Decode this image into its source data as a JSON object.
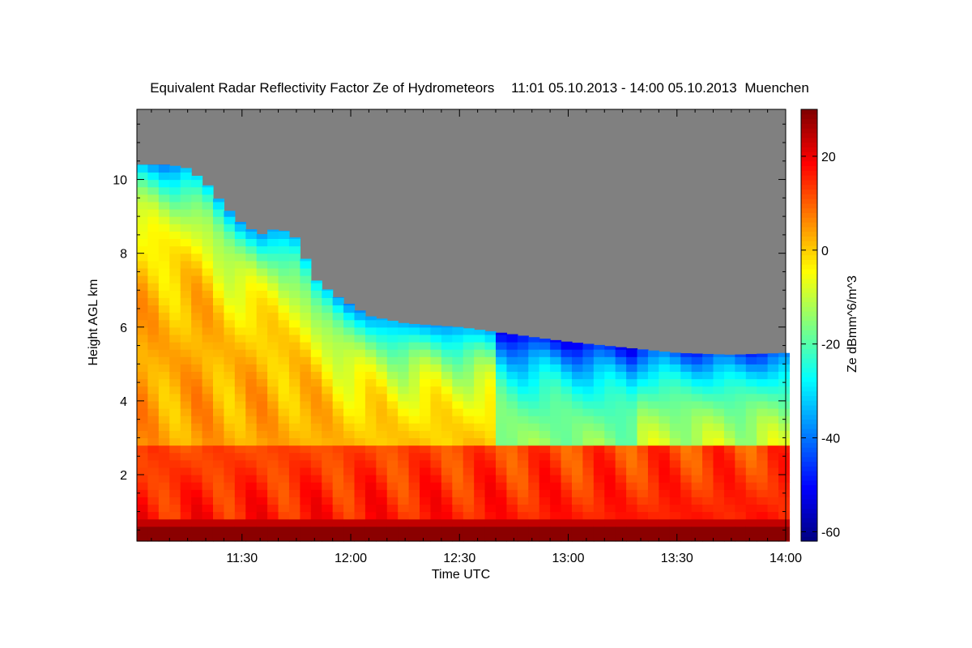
{
  "chart_data": {
    "type": "heatmap",
    "title": "Equivalent Radar Reflectivity Factor Ze of Hydrometeors",
    "time_range_text": "11:01 05.10.2013 - 14:00 05.10.2013",
    "location": "Muenchen",
    "xlabel": "Time UTC",
    "ylabel": "Height AGL km",
    "colorbar_label": "Ze dBmm^6/m^3",
    "x_ticks": [
      "11:30",
      "12:00",
      "12:30",
      "13:00",
      "13:30",
      "14:00"
    ],
    "xlim": [
      "11:01",
      "14:00"
    ],
    "y_ticks": [
      2,
      4,
      6,
      8,
      10
    ],
    "ylim": [
      0.2,
      11.9
    ],
    "colorbar_ticks": [
      20,
      0,
      -20,
      -40,
      -60
    ],
    "colorbar_range": [
      -62,
      30
    ],
    "colormap": "jet",
    "no_data_color": "#808080",
    "cloud_top_km": [
      {
        "t": "11:01",
        "h": 10.4
      },
      {
        "t": "11:10",
        "h": 10.4
      },
      {
        "t": "11:15",
        "h": 10.3
      },
      {
        "t": "11:20",
        "h": 9.9
      },
      {
        "t": "11:25",
        "h": 9.3
      },
      {
        "t": "11:30",
        "h": 8.8
      },
      {
        "t": "11:35",
        "h": 8.5
      },
      {
        "t": "11:40",
        "h": 8.7
      },
      {
        "t": "11:45",
        "h": 8.4
      },
      {
        "t": "11:50",
        "h": 7.3
      },
      {
        "t": "11:55",
        "h": 6.9
      },
      {
        "t": "12:00",
        "h": 6.6
      },
      {
        "t": "12:05",
        "h": 6.3
      },
      {
        "t": "12:15",
        "h": 6.1
      },
      {
        "t": "12:30",
        "h": 6.0
      },
      {
        "t": "12:45",
        "h": 5.8
      },
      {
        "t": "13:00",
        "h": 5.6
      },
      {
        "t": "13:15",
        "h": 5.45
      },
      {
        "t": "13:30",
        "h": 5.3
      },
      {
        "t": "13:45",
        "h": 5.25
      },
      {
        "t": "14:00",
        "h": 5.3
      }
    ]
  }
}
